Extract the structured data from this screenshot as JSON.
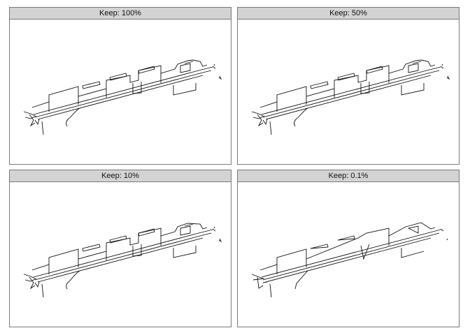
{
  "panels": [
    {
      "title": "Keep: 100%"
    },
    {
      "title": "Keep: 50%"
    },
    {
      "title": "Keep: 10%"
    },
    {
      "title": "Keep: 0.1%"
    }
  ],
  "colors": {
    "stroke": "#111111",
    "header_bg": "#d3d3d3",
    "border": "#7a7a7a"
  }
}
